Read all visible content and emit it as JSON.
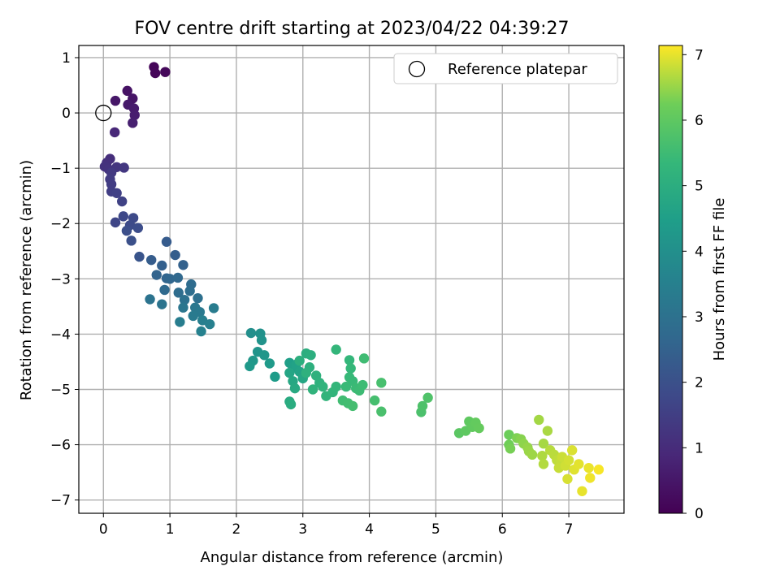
{
  "chart_data": {
    "type": "scatter",
    "title": "FOV centre drift starting at 2023/04/22 04:39:27",
    "xlabel": "Angular distance from reference (arcmin)",
    "ylabel": "Rotation from reference (arcmin)",
    "xlim": [
      -0.37,
      7.83
    ],
    "ylim": [
      -7.24,
      1.22
    ],
    "x_ticks": [
      0,
      1,
      2,
      3,
      4,
      5,
      6,
      7
    ],
    "y_ticks": [
      1,
      0,
      -1,
      -2,
      -3,
      -4,
      -5,
      -6,
      -7
    ],
    "grid": true,
    "legend": {
      "placement": "top-right",
      "entries": [
        "Reference platepar"
      ]
    },
    "reference_point": {
      "x": 0,
      "y": 0,
      "label": "Reference platepar"
    },
    "colorbar": {
      "label": "Hours from first FF file",
      "colormap": "viridis",
      "range": [
        0,
        7.14
      ],
      "ticks": [
        0,
        1,
        2,
        3,
        4,
        5,
        6,
        7
      ]
    },
    "points": [
      [
        0.76,
        0.83,
        0.1
      ],
      [
        0.78,
        0.72,
        0.12
      ],
      [
        0.93,
        0.74,
        0.15
      ],
      [
        0.36,
        0.4,
        0.4
      ],
      [
        0.44,
        0.26,
        0.45
      ],
      [
        0.18,
        0.22,
        0.5
      ],
      [
        0.37,
        0.15,
        0.55
      ],
      [
        0.46,
        0.08,
        0.6
      ],
      [
        0.47,
        -0.04,
        0.65
      ],
      [
        0.44,
        -0.18,
        0.7
      ],
      [
        0.17,
        -0.35,
        0.9
      ],
      [
        0.1,
        -0.83,
        1.05
      ],
      [
        0.05,
        -0.9,
        1.1
      ],
      [
        0.02,
        -0.97,
        1.15
      ],
      [
        0.08,
        -1.02,
        1.2
      ],
      [
        0.2,
        -0.98,
        1.25
      ],
      [
        0.31,
        -0.99,
        1.3
      ],
      [
        0.12,
        -1.08,
        1.35
      ],
      [
        0.1,
        -1.2,
        1.4
      ],
      [
        0.12,
        -1.29,
        1.45
      ],
      [
        0.12,
        -1.42,
        1.5
      ],
      [
        0.2,
        -1.45,
        1.55
      ],
      [
        0.28,
        -1.6,
        1.6
      ],
      [
        0.18,
        -1.98,
        1.7
      ],
      [
        0.3,
        -1.87,
        1.75
      ],
      [
        0.45,
        -1.9,
        1.8
      ],
      [
        0.4,
        -2.03,
        1.85
      ],
      [
        0.52,
        -2.08,
        1.9
      ],
      [
        0.35,
        -2.13,
        1.95
      ],
      [
        0.42,
        -2.31,
        2.0
      ],
      [
        0.54,
        -2.6,
        2.1
      ],
      [
        0.95,
        -2.33,
        2.3
      ],
      [
        0.72,
        -2.66,
        2.35
      ],
      [
        1.08,
        -2.57,
        2.4
      ],
      [
        0.88,
        -2.76,
        2.45
      ],
      [
        1.2,
        -2.75,
        2.5
      ],
      [
        0.8,
        -2.93,
        2.55
      ],
      [
        0.95,
        -2.99,
        2.6
      ],
      [
        1.0,
        -3.0,
        2.65
      ],
      [
        1.12,
        -2.98,
        2.7
      ],
      [
        0.92,
        -3.2,
        2.75
      ],
      [
        1.32,
        -3.1,
        2.8
      ],
      [
        1.13,
        -3.25,
        2.85
      ],
      [
        1.3,
        -3.22,
        2.9
      ],
      [
        1.42,
        -3.35,
        2.95
      ],
      [
        1.22,
        -3.38,
        3.0
      ],
      [
        0.7,
        -3.37,
        3.05
      ],
      [
        0.88,
        -3.46,
        3.1
      ],
      [
        1.2,
        -3.52,
        3.15
      ],
      [
        1.38,
        -3.52,
        3.2
      ],
      [
        1.45,
        -3.6,
        3.25
      ],
      [
        1.35,
        -3.67,
        3.3
      ],
      [
        1.66,
        -3.53,
        3.35
      ],
      [
        1.15,
        -3.78,
        3.4
      ],
      [
        1.49,
        -3.75,
        3.45
      ],
      [
        1.6,
        -3.82,
        3.5
      ],
      [
        1.47,
        -3.95,
        3.55
      ],
      [
        2.22,
        -3.98,
        4.0
      ],
      [
        2.36,
        -3.99,
        4.05
      ],
      [
        2.38,
        -4.11,
        4.1
      ],
      [
        2.32,
        -4.32,
        4.15
      ],
      [
        2.42,
        -4.38,
        4.2
      ],
      [
        2.25,
        -4.48,
        4.25
      ],
      [
        2.2,
        -4.58,
        4.3
      ],
      [
        2.5,
        -4.53,
        4.35
      ],
      [
        2.58,
        -4.77,
        4.4
      ],
      [
        2.8,
        -4.52,
        4.5
      ],
      [
        2.85,
        -4.6,
        4.55
      ],
      [
        2.9,
        -4.55,
        4.6
      ],
      [
        2.95,
        -4.68,
        4.65
      ],
      [
        2.8,
        -4.7,
        4.7
      ],
      [
        3.0,
        -4.8,
        4.75
      ],
      [
        2.85,
        -4.85,
        4.8
      ],
      [
        2.88,
        -4.98,
        4.85
      ],
      [
        2.8,
        -5.22,
        4.9
      ],
      [
        2.82,
        -5.27,
        4.95
      ],
      [
        3.05,
        -4.35,
        5.0
      ],
      [
        3.12,
        -4.38,
        5.02
      ],
      [
        2.95,
        -4.48,
        5.05
      ],
      [
        3.1,
        -4.6,
        5.08
      ],
      [
        3.05,
        -4.7,
        5.1
      ],
      [
        3.2,
        -4.75,
        5.12
      ],
      [
        3.25,
        -4.88,
        5.15
      ],
      [
        3.15,
        -5.0,
        5.18
      ],
      [
        3.3,
        -4.95,
        5.2
      ],
      [
        3.35,
        -5.12,
        5.22
      ],
      [
        3.45,
        -5.05,
        5.25
      ],
      [
        3.5,
        -4.95,
        5.28
      ],
      [
        3.5,
        -4.28,
        5.3
      ],
      [
        3.7,
        -4.47,
        5.32
      ],
      [
        3.72,
        -4.62,
        5.35
      ],
      [
        3.7,
        -4.78,
        5.38
      ],
      [
        3.75,
        -4.85,
        5.4
      ],
      [
        3.65,
        -4.95,
        5.42
      ],
      [
        3.8,
        -4.98,
        5.45
      ],
      [
        3.85,
        -5.02,
        5.48
      ],
      [
        3.9,
        -4.92,
        5.5
      ],
      [
        3.92,
        -4.44,
        5.52
      ],
      [
        3.6,
        -5.2,
        5.55
      ],
      [
        3.68,
        -5.25,
        5.58
      ],
      [
        3.75,
        -5.3,
        5.6
      ],
      [
        4.08,
        -5.2,
        5.62
      ],
      [
        4.18,
        -4.88,
        5.65
      ],
      [
        4.18,
        -5.4,
        5.68
      ],
      [
        4.78,
        -5.41,
        5.72
      ],
      [
        4.8,
        -5.3,
        5.75
      ],
      [
        4.88,
        -5.15,
        5.78
      ],
      [
        5.35,
        -5.79,
        5.95
      ],
      [
        5.45,
        -5.75,
        6.0
      ],
      [
        5.5,
        -5.58,
        6.02
      ],
      [
        5.55,
        -5.68,
        6.05
      ],
      [
        5.6,
        -5.6,
        6.08
      ],
      [
        5.65,
        -5.7,
        6.1
      ],
      [
        6.1,
        -5.82,
        6.2
      ],
      [
        6.1,
        -6.0,
        6.25
      ],
      [
        6.12,
        -6.07,
        6.3
      ],
      [
        6.22,
        -5.88,
        6.35
      ],
      [
        6.28,
        -5.9,
        6.4
      ],
      [
        6.32,
        -5.98,
        6.45
      ],
      [
        6.38,
        -6.05,
        6.5
      ],
      [
        6.4,
        -6.12,
        6.52
      ],
      [
        6.45,
        -6.18,
        6.55
      ],
      [
        6.55,
        -5.55,
        6.58
      ],
      [
        6.62,
        -5.98,
        6.6
      ],
      [
        6.68,
        -5.75,
        6.62
      ],
      [
        6.6,
        -6.2,
        6.65
      ],
      [
        6.62,
        -6.35,
        6.68
      ],
      [
        6.72,
        -6.1,
        6.7
      ],
      [
        6.78,
        -6.18,
        6.72
      ],
      [
        6.82,
        -6.28,
        6.75
      ],
      [
        6.88,
        -6.3,
        6.78
      ],
      [
        6.85,
        -6.42,
        6.8
      ],
      [
        6.9,
        -6.22,
        6.82
      ],
      [
        6.95,
        -6.38,
        6.85
      ],
      [
        7.0,
        -6.28,
        6.88
      ],
      [
        6.98,
        -6.62,
        6.9
      ],
      [
        7.05,
        -6.1,
        6.92
      ],
      [
        7.08,
        -6.45,
        6.95
      ],
      [
        7.15,
        -6.35,
        6.98
      ],
      [
        7.2,
        -6.84,
        7.0
      ],
      [
        7.3,
        -6.42,
        7.02
      ],
      [
        7.32,
        -6.6,
        7.05
      ],
      [
        7.45,
        -6.45,
        7.1
      ]
    ]
  }
}
